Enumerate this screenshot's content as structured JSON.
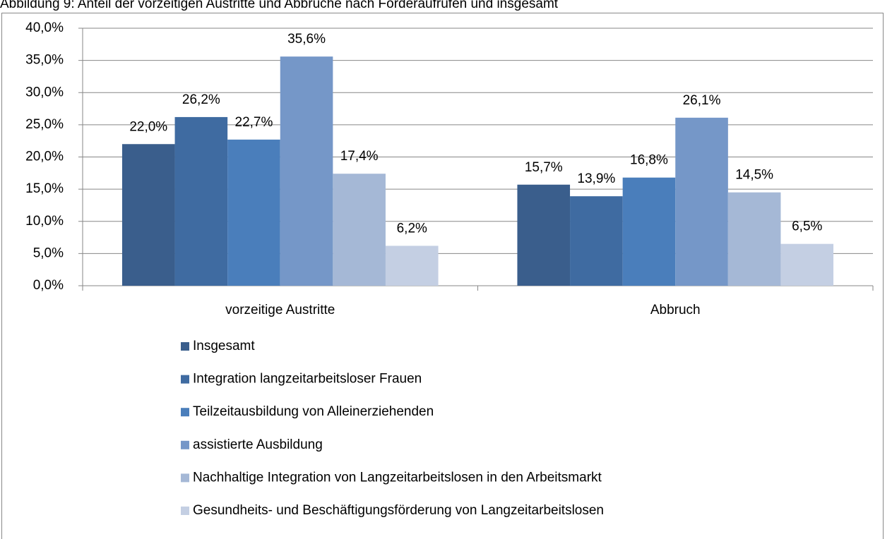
{
  "chart_data": {
    "type": "bar",
    "title": "Abbildung 9: Anteil der vorzeitigen Austritte und Abbrüche nach Förderaufrufen und insgesamt",
    "categories": [
      "vorzeitige Austritte",
      "Abbruch"
    ],
    "series": [
      {
        "name": "Insgesamt",
        "color": "#3a5e8c",
        "values": [
          22.0,
          15.7
        ],
        "value_labels": [
          "22,0%",
          "15,7%"
        ]
      },
      {
        "name": "Integration langzeitarbeitsloser Frauen",
        "color": "#3f6ba1",
        "values": [
          26.2,
          13.9
        ],
        "value_labels": [
          "26,2%",
          "13,9%"
        ]
      },
      {
        "name": "Teilzeitausbildung von Alleinerziehenden",
        "color": "#4a7ebb",
        "values": [
          22.7,
          16.8
        ],
        "value_labels": [
          "22,7%",
          "16,8%"
        ]
      },
      {
        "name": "assistierte Ausbildung",
        "color": "#7597c8",
        "values": [
          35.6,
          26.1
        ],
        "value_labels": [
          "35,6%",
          "26,1%"
        ]
      },
      {
        "name": "Nachhaltige Integration von Langzeitarbeitslosen in den Arbeitsmarkt",
        "color": "#a5b8d6",
        "values": [
          17.4,
          14.5
        ],
        "value_labels": [
          "17,4%",
          "14,5%"
        ]
      },
      {
        "name": "Gesundheits- und Beschäftigungsförderung von Langzeitarbeitslosen",
        "color": "#c4cfe3",
        "values": [
          6.2,
          6.5
        ],
        "value_labels": [
          "6,2%",
          "6,5%"
        ]
      }
    ],
    "ylim": [
      0,
      40
    ],
    "yticks": [
      {
        "value": 0,
        "label": "0,0%"
      },
      {
        "value": 5,
        "label": "5,0%"
      },
      {
        "value": 10,
        "label": "10,0%"
      },
      {
        "value": 15,
        "label": "15,0%"
      },
      {
        "value": 20,
        "label": "20,0%"
      },
      {
        "value": 25,
        "label": "25,0%"
      },
      {
        "value": 30,
        "label": "30,0%"
      },
      {
        "value": 35,
        "label": "35,0%"
      },
      {
        "value": 40,
        "label": "40,0%"
      }
    ],
    "grid": true,
    "legend": "bottom"
  }
}
